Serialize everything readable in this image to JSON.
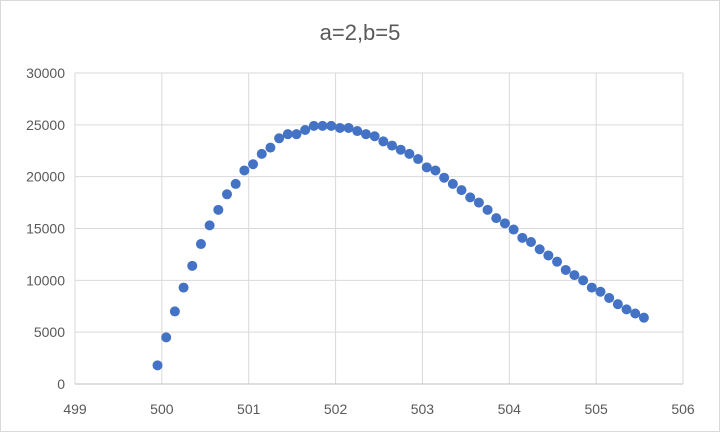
{
  "chart_data": {
    "type": "scatter",
    "title": "a=2,b=5",
    "xlabel": "",
    "ylabel": "",
    "xlim": [
      499,
      506
    ],
    "ylim": [
      0,
      30000
    ],
    "x_ticks": [
      499,
      500,
      501,
      502,
      503,
      504,
      505,
      506
    ],
    "y_ticks": [
      0,
      5000,
      10000,
      15000,
      20000,
      25000,
      30000
    ],
    "grid": "horizontal and vertical major gridlines",
    "legend": "none",
    "marker_color": "#4472C4",
    "series": [
      {
        "points": [
          [
            499.95,
            1800
          ],
          [
            500.05,
            4500
          ],
          [
            500.15,
            7000
          ],
          [
            500.25,
            9300
          ],
          [
            500.35,
            11400
          ],
          [
            500.45,
            13500
          ],
          [
            500.55,
            15300
          ],
          [
            500.65,
            16800
          ],
          [
            500.75,
            18300
          ],
          [
            500.85,
            19300
          ],
          [
            500.95,
            20600
          ],
          [
            501.05,
            21200
          ],
          [
            501.15,
            22200
          ],
          [
            501.25,
            22800
          ],
          [
            501.35,
            23700
          ],
          [
            501.45,
            24100
          ],
          [
            501.55,
            24100
          ],
          [
            501.65,
            24500
          ],
          [
            501.75,
            24900
          ],
          [
            501.85,
            24900
          ],
          [
            501.95,
            24900
          ],
          [
            502.05,
            24700
          ],
          [
            502.15,
            24700
          ],
          [
            502.25,
            24400
          ],
          [
            502.35,
            24100
          ],
          [
            502.45,
            23900
          ],
          [
            502.55,
            23400
          ],
          [
            502.65,
            23000
          ],
          [
            502.75,
            22600
          ],
          [
            502.85,
            22200
          ],
          [
            502.95,
            21700
          ],
          [
            503.05,
            20900
          ],
          [
            503.15,
            20600
          ],
          [
            503.25,
            19900
          ],
          [
            503.35,
            19300
          ],
          [
            503.45,
            18700
          ],
          [
            503.55,
            18000
          ],
          [
            503.65,
            17500
          ],
          [
            503.75,
            16800
          ],
          [
            503.85,
            16000
          ],
          [
            503.95,
            15500
          ],
          [
            504.05,
            14900
          ],
          [
            504.15,
            14100
          ],
          [
            504.25,
            13700
          ],
          [
            504.35,
            13000
          ],
          [
            504.45,
            12400
          ],
          [
            504.55,
            11800
          ],
          [
            504.65,
            11000
          ],
          [
            504.75,
            10500
          ],
          [
            504.85,
            10000
          ],
          [
            504.95,
            9300
          ],
          [
            505.05,
            8900
          ],
          [
            505.15,
            8300
          ],
          [
            505.25,
            7700
          ],
          [
            505.35,
            7200
          ],
          [
            505.45,
            6800
          ],
          [
            505.55,
            6400
          ]
        ]
      }
    ]
  }
}
